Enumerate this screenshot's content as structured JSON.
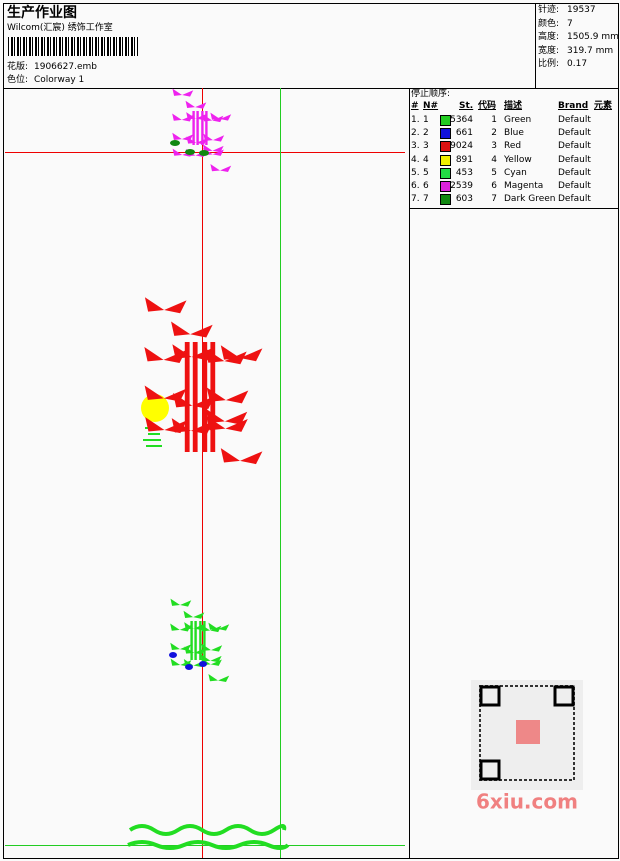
{
  "header": {
    "title": "生产作业图",
    "studio": "Wilcom(汇宸) 绣饰工作室",
    "design": {
      "label": "花版:",
      "value": "1906627.emb"
    },
    "colorway": {
      "label": "色位:",
      "value": "Colorway 1"
    }
  },
  "info": [
    {
      "label": "针迹:",
      "value": "19537"
    },
    {
      "label": "颜色:",
      "value": "7"
    },
    {
      "label": "高度:",
      "value": "1505.9 mm"
    },
    {
      "label": "宽度:",
      "value": "319.7 mm"
    },
    {
      "label": "比例:",
      "value": "0.17"
    }
  ],
  "stop_sequence": {
    "title": "停止顺序:",
    "columns": [
      "#",
      "N#",
      "St.",
      "代码",
      "描述",
      "Brand",
      "元素"
    ],
    "rows": [
      {
        "index": "1.",
        "n": "1",
        "color": "#22cc22",
        "stitches": "5364",
        "code": "1",
        "description": "Green",
        "brand": "Default"
      },
      {
        "index": "2.",
        "n": "2",
        "color": "#1111dd",
        "stitches": "661",
        "code": "2",
        "description": "Blue",
        "brand": "Default"
      },
      {
        "index": "3.",
        "n": "3",
        "color": "#dd1111",
        "stitches": "9024",
        "code": "3",
        "description": "Red",
        "brand": "Default"
      },
      {
        "index": "4.",
        "n": "4",
        "color": "#eeee00",
        "stitches": "891",
        "code": "4",
        "description": "Yellow",
        "brand": "Default"
      },
      {
        "index": "5.",
        "n": "5",
        "color": "#22dd44",
        "stitches": "453",
        "code": "5",
        "description": "Cyan",
        "brand": "Default"
      },
      {
        "index": "6.",
        "n": "6",
        "color": "#dd22dd",
        "stitches": "2539",
        "code": "6",
        "description": "Magenta",
        "brand": "Default"
      },
      {
        "index": "7.",
        "n": "7",
        "color": "#118811",
        "stitches": "603",
        "code": "7",
        "description": "Dark Green",
        "brand": "Default"
      }
    ]
  },
  "watermark": "6xiu.com"
}
